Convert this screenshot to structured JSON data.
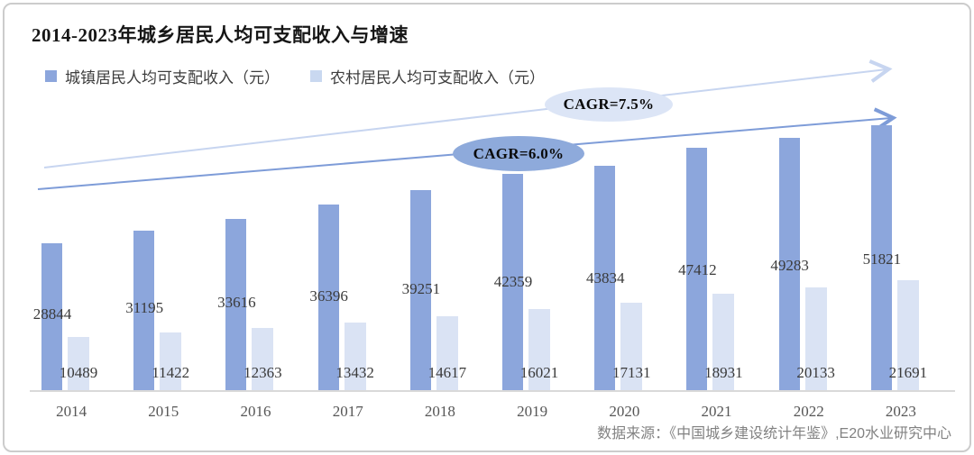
{
  "title": "2014-2023年城乡居民人均可支配收入与增速",
  "legend": [
    {
      "label": "城镇居民人均可支配收入（元）",
      "color": "#8CA6DC"
    },
    {
      "label": "农村居民人均可支配收入（元）",
      "color": "#C9D8F0"
    }
  ],
  "annotations": {
    "rural": {
      "label": "CAGR=7.5%",
      "fill": "#DCE5F6"
    },
    "urban": {
      "label": "CAGR=6.0%",
      "fill": "#8EAADB"
    }
  },
  "source": "数据来源：《中国城乡建设统计年鉴》,E20水业研究中心",
  "colors": {
    "urban_bar": "#8CA6DC",
    "rural_bar": "#DAE3F4",
    "urban_arrow": "#7E9CD8",
    "rural_arrow": "#C7D5F0",
    "axis": "#D9D9D9"
  },
  "chart_data": {
    "type": "bar",
    "title": "2014-2023年城乡居民人均可支配收入与增速",
    "categories": [
      "2014",
      "2015",
      "2016",
      "2017",
      "2018",
      "2019",
      "2020",
      "2021",
      "2022",
      "2023"
    ],
    "series": [
      {
        "name": "城镇居民人均可支配收入（元）",
        "color": "#8CA6DC",
        "values": [
          28844,
          31195,
          33616,
          36396,
          39251,
          42359,
          43834,
          47412,
          49283,
          51821
        ]
      },
      {
        "name": "农村居民人均可支配收入（元）",
        "color": "#DAE3F4",
        "values": [
          10489,
          11422,
          12363,
          13432,
          14617,
          16021,
          17131,
          18931,
          20133,
          21691
        ]
      }
    ],
    "xlabel": "",
    "ylabel": "",
    "ylim": [
      0,
      51821
    ],
    "grid": false,
    "legend_position": "top-left",
    "value_labels": true,
    "annotations": [
      {
        "text": "CAGR=7.5%",
        "applies_to": "农村居民人均可支配收入（元）",
        "shape": "ellipse-over-trend-arrow"
      },
      {
        "text": "CAGR=6.0%",
        "applies_to": "城镇居民人均可支配收入（元）",
        "shape": "ellipse-over-trend-arrow"
      }
    ]
  }
}
